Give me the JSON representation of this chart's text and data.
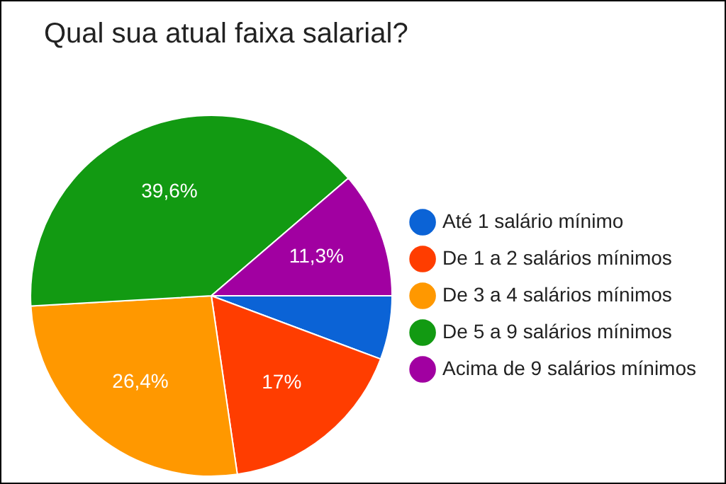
{
  "chart_data": {
    "type": "pie",
    "title": "Qual sua atual faixa salarial?",
    "categories": [
      "Até 1 salário mínimo",
      "De 1 a 2 salários mínimos",
      "De 3 a 4 salários mínimos",
      "De 5 a 9 salários mínimos",
      "Acima de 9 salários mínimos"
    ],
    "values": [
      5.7,
      17,
      26.4,
      39.6,
      11.3
    ],
    "value_labels": [
      null,
      "17%",
      "26,4%",
      "39,6%",
      "11,3%"
    ],
    "colors": [
      "#0b63d6",
      "#ff3d00",
      "#ff9800",
      "#129a12",
      "#a100a1"
    ],
    "legend": "right"
  }
}
